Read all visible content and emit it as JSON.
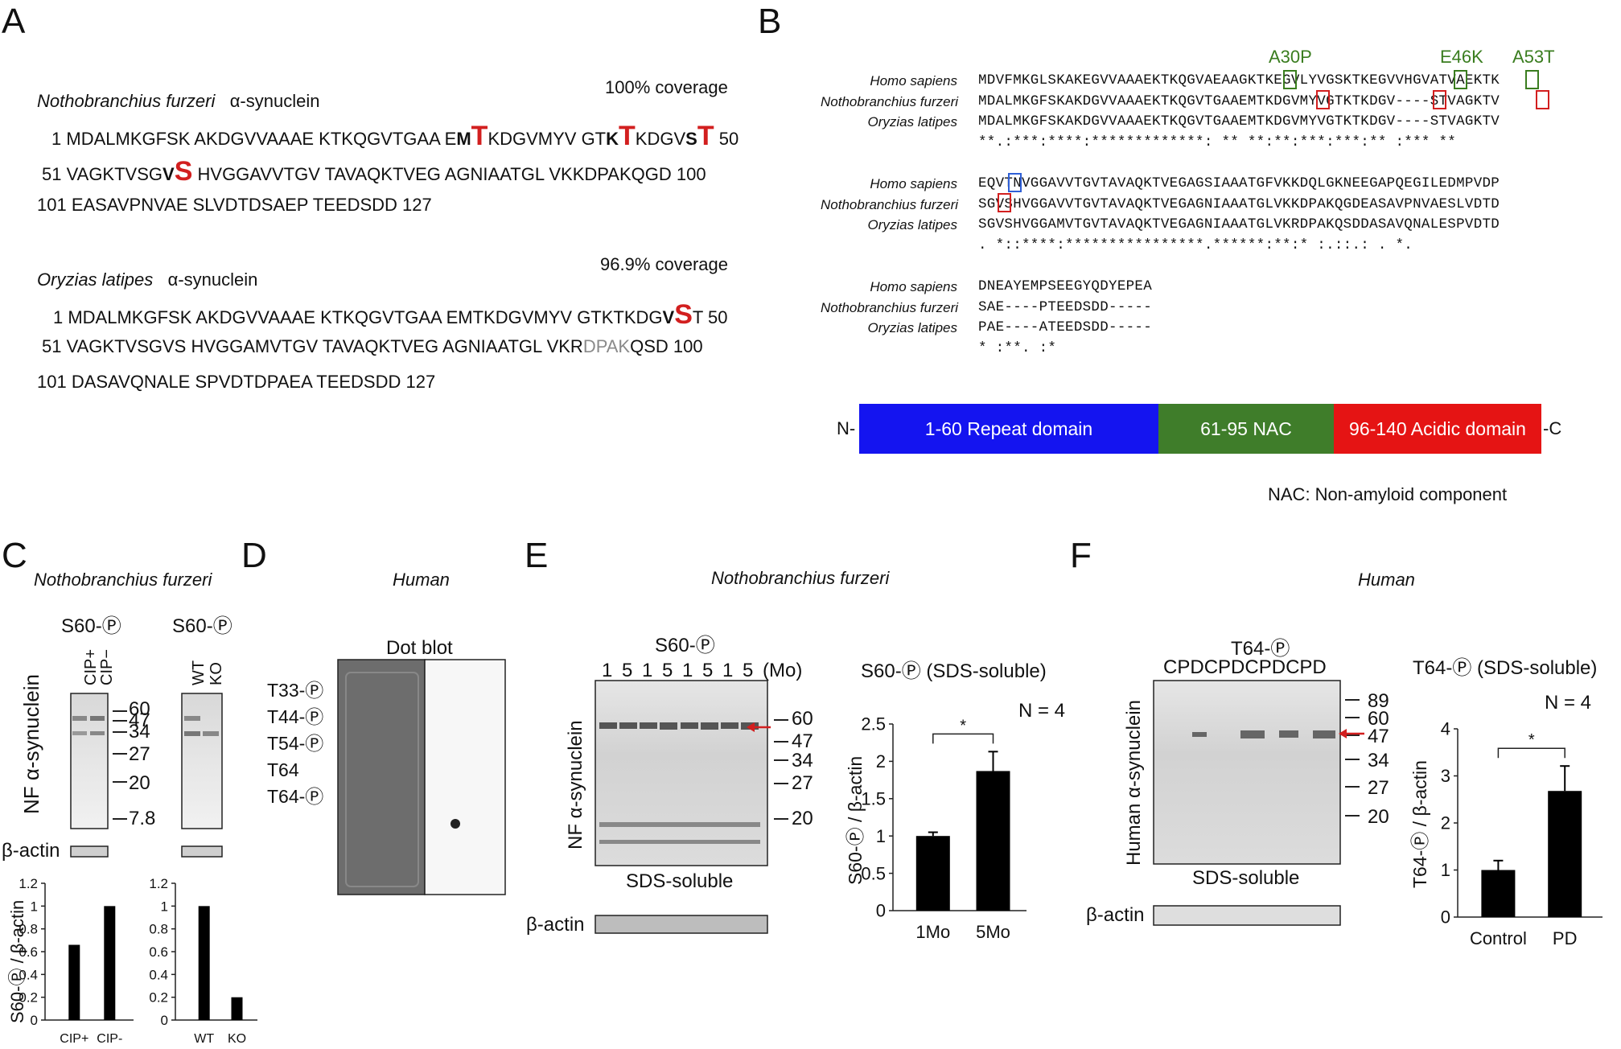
{
  "panelA": {
    "label": "A",
    "nf": {
      "species": "Nothobranchius furzeri",
      "protein": "α-synuclein",
      "coverage": "100% coverage",
      "line1": {
        "start": "1",
        "pre1": "MDALMKGFSK AKDGVVAAAE KTKQGVTGAA E",
        "b1": "M",
        "r1": "T",
        "mid1": "KDGVMYV GT",
        "b2": "K",
        "r2": "T",
        "mid2": "KDGV",
        "b3": "S",
        "r3": "T",
        "end": " 50"
      },
      "line2": {
        "start": "51",
        "pre": "VAGKTVSG",
        "b": "V",
        "r": "S",
        "post": " HVGGAVVTGV TAVAQKTVEG AGNIAATGL VKKDPAKQGD 100"
      },
      "line3": "101 EASAVPNVAE SLVDTDSAEP TEEDSDD 127"
    },
    "ol": {
      "species": "Oryzias latipes",
      "protein": "α-synuclein",
      "coverage": "96.9% coverage",
      "line1": {
        "pre": "1 MDALMKGFSK AKDGVVAAAE KTKQGVTGAA EMTKDGVMYV GTKTKDG",
        "b": "V",
        "r": "S",
        "post": "T 50"
      },
      "line2": {
        "pre": "51 VAGKTVSGVS HVGGAMVTGV TAVAQKTVEG AGNIAATGL VKR",
        "grey": "DPAK",
        "post": "QSD 100"
      },
      "line3": "101 DASAVQNALE SPVDTDPAEA TEEDSDD 127"
    }
  },
  "panelB": {
    "label": "B",
    "mutations": [
      "A30P",
      "E46K",
      "A53T"
    ],
    "species": [
      "Homo sapiens",
      "Nothobranchius furzeri",
      "Oryzias latipes"
    ],
    "block1": {
      "hs": "MDVFMKGLSKAKEGVVAAAEKTKQGVAEAAGKTKEGVLYVGSKTKEGVVHGVATVAEKTK",
      "nf": "MDALMKGFSKAKDGVVAAAEKTKQGVTGAAEMTKDGVMYVGTKTKDGV----STVAGKTV",
      "ol": "MDALMKGFSKAKDGVVAAAEKTKQGVTGAAEMTKDGVMYVGTKTKDGV----STVAGKTV",
      "cons": "**.:***:****:*************:  **  **:**:***:***:**     :*** **"
    },
    "block2": {
      "hs": "EQVTNVGGAVVTGVTAVAQKTVEGAGSIAAATGFVKKDQLGKNEEGAPQEGILEDMPVDP",
      "nf": "SGVSHVGGAVVTGVTAVAQKTVEGAGNIAAATGLVKKDPAKQGDEASAVPNVAESLVDTD",
      "ol": "SGVSHVGGAMVTGVTAVAQKTVEGAGNIAAATGLVKRDPAKQSDDASAVQNALESPVDTD",
      "cons": ". *::****:****************.******:**:*    :.::.:    .   *."
    },
    "block3": {
      "hs": "DNEAYEMPSEEGYQDYEPEA",
      "nf": "SAE----PTEEDSDD-----",
      "ol": "PAE----ATEEDSDD-----",
      "cons": "  *      :**. :*"
    },
    "domain_bar": {
      "n_term": "N-",
      "c_term": "-C",
      "segments": [
        {
          "label": "1-60 Repeat domain",
          "color": "#1414f0"
        },
        {
          "label": "61-95 NAC",
          "color": "#3f7d2a"
        },
        {
          "label": "96-140 Acidic domain",
          "color": "#e51414"
        }
      ],
      "note": "NAC: Non-amyloid component"
    }
  },
  "panelC": {
    "label": "C",
    "species": "Nothobranchius furzeri",
    "blot1_title": "S60-Ⓟ",
    "blot2_title": "S60-Ⓟ",
    "lanes1": [
      "CIP+",
      "CIP−"
    ],
    "lanes2": [
      "WT",
      "KO"
    ],
    "ylabel_blot": "NF α-synuclein",
    "markers": [
      "60",
      "47",
      "34",
      "27",
      "20",
      "7.8"
    ],
    "loading": "β-actin",
    "chart_ylabel": "S60-Ⓟ / β-actin"
  },
  "panelD": {
    "label": "D",
    "species": "Human",
    "title": "Dot blot",
    "rows": [
      "T33-Ⓟ",
      "T44-Ⓟ",
      "T54-Ⓟ",
      "T64",
      "T64-Ⓟ"
    ]
  },
  "panelE": {
    "label": "E",
    "species": "Nothobranchius furzeri",
    "blot_title": "S60-Ⓟ",
    "lanes": [
      "1",
      "5",
      "1",
      "5",
      "1",
      "5",
      "1",
      "5"
    ],
    "lane_unit": "(Mo)",
    "ylabel_blot": "NF α-synuclein",
    "markers": [
      "60",
      "47",
      "34",
      "27",
      "20"
    ],
    "fraction": "SDS-soluble",
    "loading": "β-actin",
    "chart_title": "S60-Ⓟ (SDS-soluble)",
    "chart_ylabel": "S60-Ⓟ / β-actin",
    "n_label": "N = 4",
    "sig": "*"
  },
  "panelF": {
    "label": "F",
    "species": "Human",
    "blot_title": "T64-Ⓟ",
    "lanes": [
      "C",
      "PD",
      "C",
      "PD",
      "C",
      "PD",
      "C",
      "PD"
    ],
    "ylabel_blot": "Human α-synuclein",
    "markers": [
      "89",
      "60",
      "47",
      "34",
      "27",
      "20"
    ],
    "fraction": "SDS-soluble",
    "loading": "β-actin",
    "chart_title": "T64-Ⓟ (SDS-soluble)",
    "chart_ylabel": "T64-Ⓟ / β-actin",
    "n_label": "N = 4",
    "sig": "*"
  },
  "chart_data": [
    {
      "type": "bar",
      "id": "C1",
      "categories": [
        "CIP+",
        "CIP-"
      ],
      "values": [
        0.66,
        1.0
      ],
      "ylim": [
        0,
        1.2
      ],
      "yticks": [
        "0",
        "0.2",
        "0.4",
        "0.6",
        "0.8",
        "1",
        "1.2"
      ]
    },
    {
      "type": "bar",
      "id": "C2",
      "categories": [
        "WT",
        "KO"
      ],
      "values": [
        1.0,
        0.2
      ],
      "ylim": [
        0,
        1.2
      ],
      "yticks": [
        "0",
        "0.2",
        "0.4",
        "0.6",
        "0.8",
        "1",
        "1.2"
      ]
    },
    {
      "type": "bar",
      "id": "E",
      "categories": [
        "1Mo",
        "5Mo"
      ],
      "values": [
        1.0,
        1.87
      ],
      "errors": [
        0.05,
        0.26
      ],
      "ylim": [
        0,
        2.5
      ],
      "yticks": [
        "0",
        "0.5",
        "1",
        "1.5",
        "2",
        "2.5"
      ]
    },
    {
      "type": "bar",
      "id": "F",
      "categories": [
        "Control",
        "PD"
      ],
      "values": [
        1.0,
        2.68
      ],
      "errors": [
        0.2,
        0.53
      ],
      "ylim": [
        0,
        4
      ],
      "yticks": [
        "0",
        "1",
        "2",
        "3",
        "4"
      ]
    }
  ]
}
